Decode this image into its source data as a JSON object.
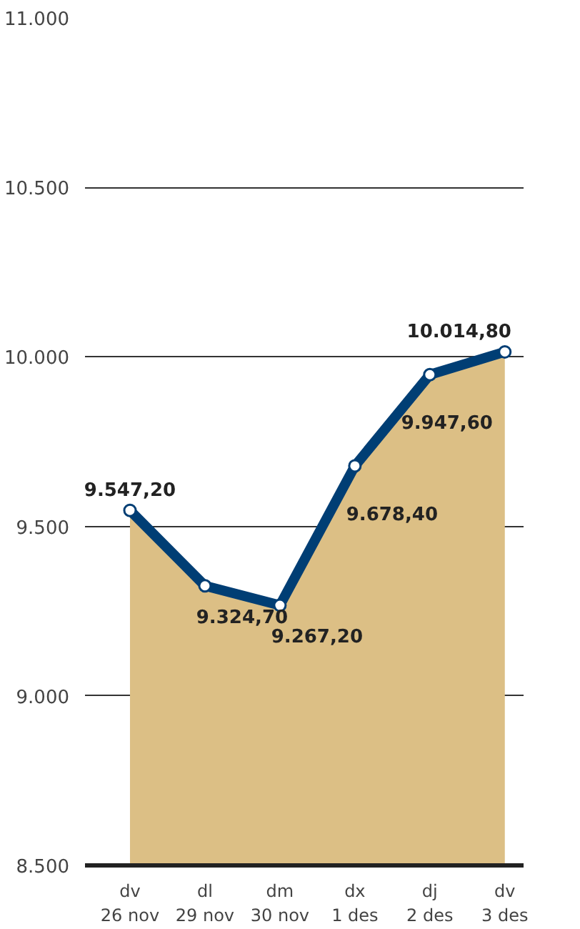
{
  "chart_data": {
    "type": "area",
    "categories": [
      "dv\n26 nov",
      "dl\n29 nov",
      "dm\n30 nov",
      "dx\n1 des",
      "dj\n2 des",
      "dv\n3 des"
    ],
    "series": [
      {
        "color": "#dcbf85",
        "values": [
          9547.2,
          9324.7,
          9267.2,
          9678.4,
          9947.6,
          10014.8
        ]
      },
      {
        "type": "line",
        "marker": "circle",
        "color": "#003e74",
        "values": [
          9547.2,
          9324.7,
          9267.2,
          9678.4,
          9947.6,
          10014.8
        ],
        "value_labels": [
          "9.547,20",
          "9.324,70",
          "9.267,20",
          "9.678,40",
          "9.947,60",
          "10.014,80"
        ]
      }
    ],
    "ylim": [
      8500,
      11000
    ],
    "yticks": [
      {
        "value": 8500,
        "label": "8.500"
      },
      {
        "value": 9000,
        "label": "9.000"
      },
      {
        "value": 9500,
        "label": "9.500"
      },
      {
        "value": 10000,
        "label": "10.000"
      },
      {
        "value": 10500,
        "label": "10.500"
      },
      {
        "value": 11000,
        "label": "11.000"
      }
    ],
    "grid": "y",
    "line_style": "solid"
  }
}
